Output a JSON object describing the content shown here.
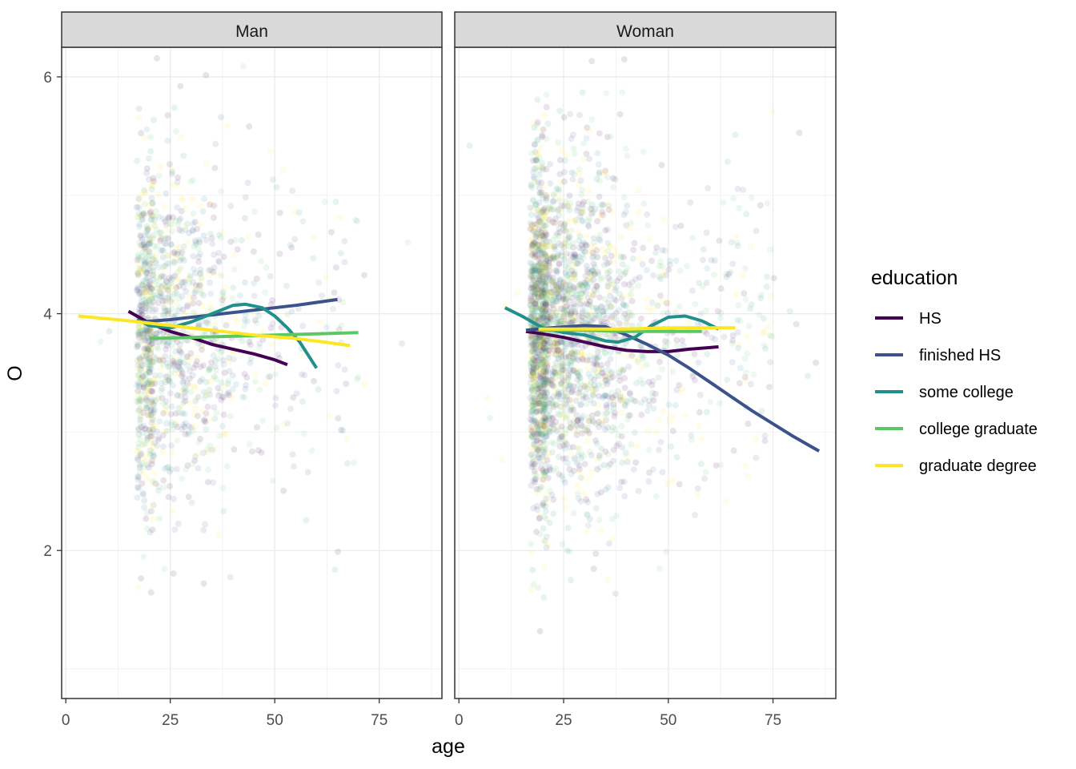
{
  "chart_data": {
    "type": "scatter",
    "facets": [
      "Man",
      "Woman"
    ],
    "xlabel": "age",
    "ylabel": "O",
    "xlim": [
      -1,
      90
    ],
    "ylim": [
      0.75,
      6.25
    ],
    "x_ticks": [
      0,
      25,
      50,
      75
    ],
    "y_ticks": [
      2,
      4,
      6
    ],
    "grid": true,
    "legend_title": "education",
    "legend_position": "right",
    "series": [
      {
        "name": "HS",
        "color": "#440154",
        "smooth": {
          "Man": [
            [
              15,
              4.02
            ],
            [
              20,
              3.92
            ],
            [
              25,
              3.85
            ],
            [
              30,
              3.8
            ],
            [
              35,
              3.74
            ],
            [
              40,
              3.7
            ],
            [
              45,
              3.66
            ],
            [
              50,
              3.61
            ],
            [
              53,
              3.57
            ]
          ],
          "Woman": [
            [
              16,
              3.85
            ],
            [
              20,
              3.83
            ],
            [
              25,
              3.8
            ],
            [
              30,
              3.76
            ],
            [
              35,
              3.72
            ],
            [
              40,
              3.69
            ],
            [
              45,
              3.68
            ],
            [
              50,
              3.68
            ],
            [
              55,
              3.7
            ],
            [
              62,
              3.72
            ]
          ]
        }
      },
      {
        "name": "finished HS",
        "color": "#3B528B",
        "smooth": {
          "Man": [
            [
              18,
              3.93
            ],
            [
              25,
              3.95
            ],
            [
              35,
              3.99
            ],
            [
              45,
              4.03
            ],
            [
              55,
              4.07
            ],
            [
              65,
              4.12
            ]
          ],
          "Woman": [
            [
              16,
              3.86
            ],
            [
              22,
              3.88
            ],
            [
              30,
              3.9
            ],
            [
              35,
              3.89
            ],
            [
              40,
              3.82
            ],
            [
              45,
              3.74
            ],
            [
              50,
              3.65
            ],
            [
              55,
              3.54
            ],
            [
              60,
              3.42
            ],
            [
              65,
              3.3
            ],
            [
              70,
              3.18
            ],
            [
              75,
              3.07
            ],
            [
              80,
              2.96
            ],
            [
              86,
              2.84
            ]
          ]
        }
      },
      {
        "name": "some college",
        "color": "#21908C",
        "smooth": {
          "Man": [
            [
              17,
              3.95
            ],
            [
              20,
              3.9
            ],
            [
              25,
              3.88
            ],
            [
              30,
              3.93
            ],
            [
              35,
              4.0
            ],
            [
              40,
              4.07
            ],
            [
              43,
              4.08
            ],
            [
              47,
              4.05
            ],
            [
              50,
              3.98
            ],
            [
              53,
              3.88
            ],
            [
              56,
              3.76
            ],
            [
              60,
              3.54
            ]
          ],
          "Woman": [
            [
              11,
              4.05
            ],
            [
              15,
              3.98
            ],
            [
              20,
              3.88
            ],
            [
              25,
              3.84
            ],
            [
              30,
              3.82
            ],
            [
              35,
              3.77
            ],
            [
              38,
              3.76
            ],
            [
              42,
              3.8
            ],
            [
              46,
              3.9
            ],
            [
              50,
              3.97
            ],
            [
              54,
              3.98
            ],
            [
              58,
              3.94
            ],
            [
              62,
              3.87
            ]
          ]
        }
      },
      {
        "name": "college graduate",
        "color": "#5DC863",
        "smooth": {
          "Man": [
            [
              20,
              3.79
            ],
            [
              30,
              3.8
            ],
            [
              40,
              3.81
            ],
            [
              50,
              3.82
            ],
            [
              60,
              3.83
            ],
            [
              70,
              3.84
            ]
          ],
          "Woman": [
            [
              19,
              3.86
            ],
            [
              30,
              3.86
            ],
            [
              40,
              3.85
            ],
            [
              50,
              3.85
            ],
            [
              58,
              3.85
            ]
          ]
        }
      },
      {
        "name": "graduate degree",
        "color": "#FDE725",
        "smooth": {
          "Man": [
            [
              3,
              3.98
            ],
            [
              15,
              3.94
            ],
            [
              25,
              3.9
            ],
            [
              35,
              3.86
            ],
            [
              45,
              3.82
            ],
            [
              55,
              3.79
            ],
            [
              62,
              3.76
            ],
            [
              68,
              3.73
            ]
          ],
          "Woman": [
            [
              19,
              3.87
            ],
            [
              30,
              3.87
            ],
            [
              40,
              3.87
            ],
            [
              50,
              3.88
            ],
            [
              60,
              3.88
            ],
            [
              66,
              3.88
            ]
          ]
        }
      }
    ]
  }
}
